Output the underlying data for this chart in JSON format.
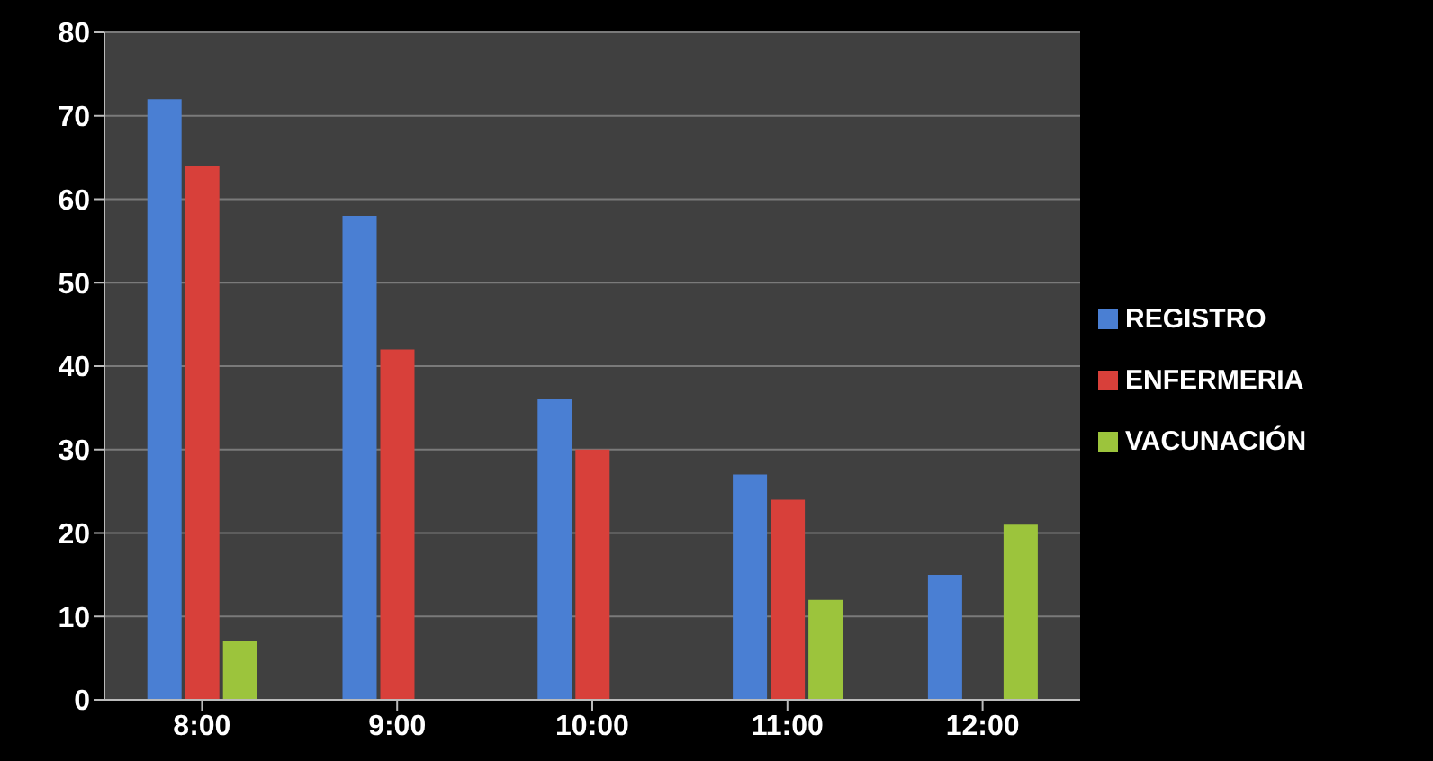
{
  "chart_data": {
    "type": "bar",
    "categories": [
      "8:00",
      "9:00",
      "10:00",
      "11:00",
      "12:00"
    ],
    "series": [
      {
        "name": "REGISTRO",
        "color": "#4a7fd3",
        "values": [
          72,
          58,
          36,
          27,
          15
        ]
      },
      {
        "name": "ENFERMERIA",
        "color": "#d8403a",
        "values": [
          64,
          42,
          30,
          24,
          0
        ]
      },
      {
        "name": "VACUNACIÓN",
        "color": "#9cc43c",
        "values": [
          7,
          0,
          0,
          12,
          21
        ]
      }
    ],
    "ylim": [
      0,
      80
    ],
    "yticks": [
      0,
      10,
      20,
      30,
      40,
      50,
      60,
      70,
      80
    ],
    "grid": "y",
    "legend": "right"
  }
}
